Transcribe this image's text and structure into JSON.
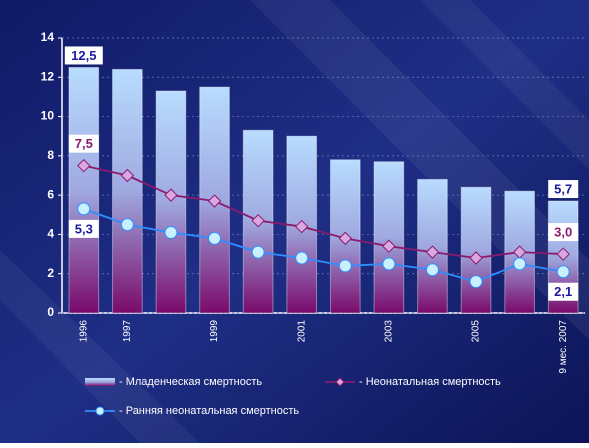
{
  "chart_data": {
    "type": "bar",
    "categories": [
      "1996",
      "1997",
      null,
      "1999",
      null,
      "2001",
      null,
      "2003",
      null,
      "2005",
      null,
      "9 мес. 2007"
    ],
    "series": [
      {
        "name": "- Младенческая смертность",
        "type": "bar",
        "color": "#b8dcff",
        "values": [
          12.5,
          12.4,
          11.3,
          11.5,
          9.3,
          9.0,
          7.8,
          7.7,
          6.8,
          6.4,
          6.2,
          5.7
        ],
        "value_labels": [
          "12,5",
          null,
          null,
          null,
          null,
          null,
          null,
          null,
          null,
          null,
          null,
          "5,7"
        ],
        "label_color": "#1a1aa0"
      },
      {
        "name": "- Неонатальная смертность",
        "type": "line",
        "marker": "diamond",
        "color": "#8a1a6e",
        "values": [
          7.5,
          7.0,
          6.0,
          5.7,
          4.7,
          4.4,
          3.8,
          3.4,
          3.1,
          2.8,
          3.1,
          3.0
        ],
        "value_labels": [
          "7,5",
          null,
          null,
          null,
          null,
          null,
          null,
          null,
          null,
          null,
          null,
          "3,0"
        ],
        "label_color": "#8a1a6e"
      },
      {
        "name": "- Ранняя неонатальная смертность",
        "type": "line",
        "marker": "circle",
        "color": "#2f8fff",
        "values": [
          5.3,
          4.5,
          4.1,
          3.8,
          3.1,
          2.8,
          2.4,
          2.5,
          2.2,
          1.6,
          2.5,
          2.1
        ],
        "value_labels": [
          "5,3",
          null,
          null,
          null,
          null,
          null,
          null,
          null,
          null,
          null,
          null,
          "2,1"
        ],
        "label_color": "#1a1aa0"
      }
    ],
    "ylim": [
      0,
      14
    ],
    "yticks": [
      0,
      2,
      4,
      6,
      8,
      10,
      12,
      14
    ],
    "grid": true
  }
}
